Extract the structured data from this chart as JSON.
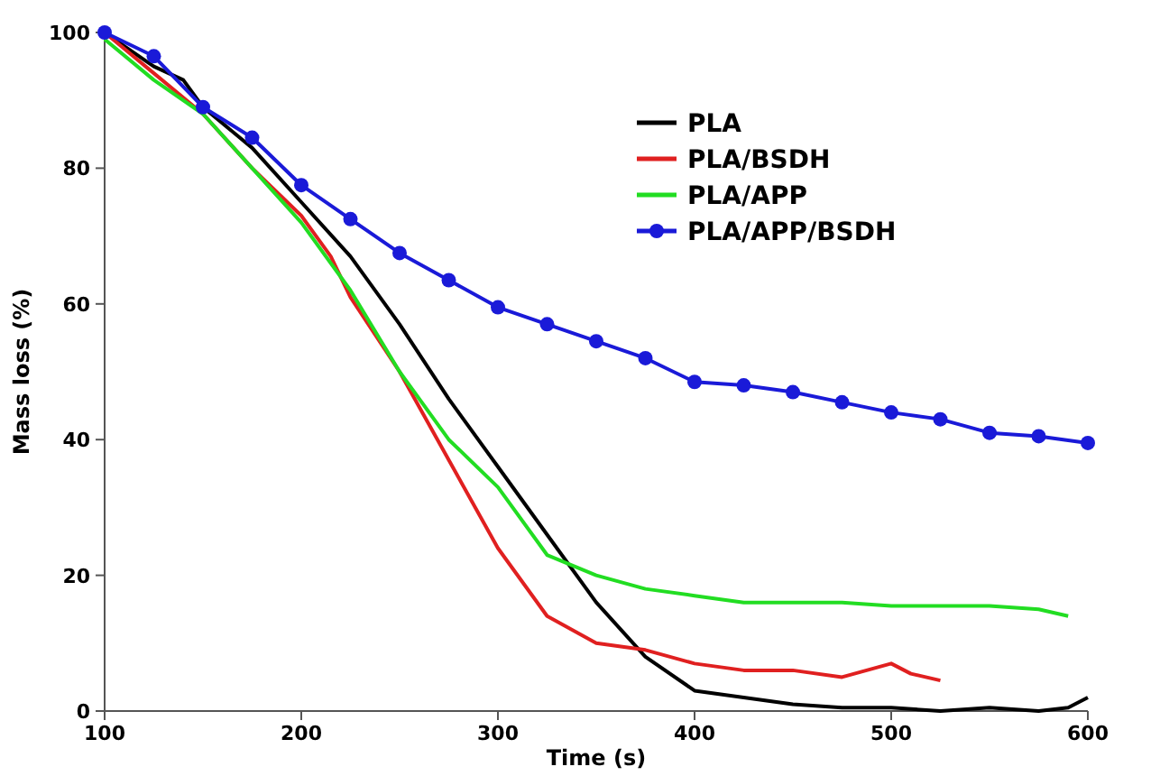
{
  "chart_data": {
    "type": "line",
    "xlabel": "Time (s)",
    "ylabel": "Mass loss (%)",
    "xlim": [
      100,
      600
    ],
    "ylim": [
      0,
      100
    ],
    "xticks": [
      100,
      200,
      300,
      400,
      500,
      600
    ],
    "yticks": [
      0,
      20,
      40,
      60,
      80,
      100
    ],
    "grid": false,
    "legend": "top right",
    "series": [
      {
        "name": "PLA",
        "color": "#000000",
        "marker": "none",
        "x": [
          100,
          110,
          125,
          140,
          150,
          175,
          200,
          225,
          250,
          275,
          300,
          325,
          350,
          375,
          400,
          425,
          450,
          475,
          500,
          525,
          550,
          575,
          590,
          600
        ],
        "values": [
          100,
          98,
          95,
          93,
          89,
          83,
          75,
          67,
          57,
          46,
          36,
          26,
          16,
          8,
          3,
          2,
          1,
          0.5,
          0.5,
          0,
          0.5,
          0,
          0.5,
          2
        ]
      },
      {
        "name": "PLA/BSDH",
        "color": "#e02020",
        "marker": "none",
        "x": [
          100,
          125,
          150,
          175,
          200,
          215,
          225,
          250,
          275,
          300,
          325,
          350,
          375,
          400,
          425,
          450,
          475,
          500,
          510,
          525
        ],
        "values": [
          100,
          94,
          88,
          80,
          73,
          67,
          61,
          50,
          37,
          24,
          14,
          10,
          9,
          7,
          6,
          6,
          5,
          7,
          5.5,
          4.5
        ]
      },
      {
        "name": "PLA/APP",
        "color": "#22dd22",
        "marker": "none",
        "x": [
          100,
          125,
          150,
          175,
          200,
          225,
          250,
          275,
          300,
          325,
          350,
          375,
          400,
          425,
          450,
          475,
          500,
          525,
          550,
          575,
          590
        ],
        "values": [
          99,
          93,
          88,
          80,
          72,
          62,
          50,
          40,
          33,
          23,
          20,
          18,
          17,
          16,
          16,
          16,
          15.5,
          15.5,
          15.5,
          15,
          14
        ]
      },
      {
        "name": "PLA/APP/BSDH",
        "color": "#1a1ad8",
        "marker": "circle",
        "x": [
          100,
          125,
          150,
          175,
          200,
          225,
          250,
          275,
          300,
          325,
          350,
          375,
          400,
          425,
          450,
          475,
          500,
          525,
          550,
          575,
          600
        ],
        "values": [
          100,
          96.5,
          89,
          84.5,
          77.5,
          72.5,
          67.5,
          63.5,
          59.5,
          57,
          54.5,
          52,
          48.5,
          48,
          47,
          45.5,
          44,
          43,
          41,
          40.5,
          39.5
        ]
      }
    ]
  }
}
